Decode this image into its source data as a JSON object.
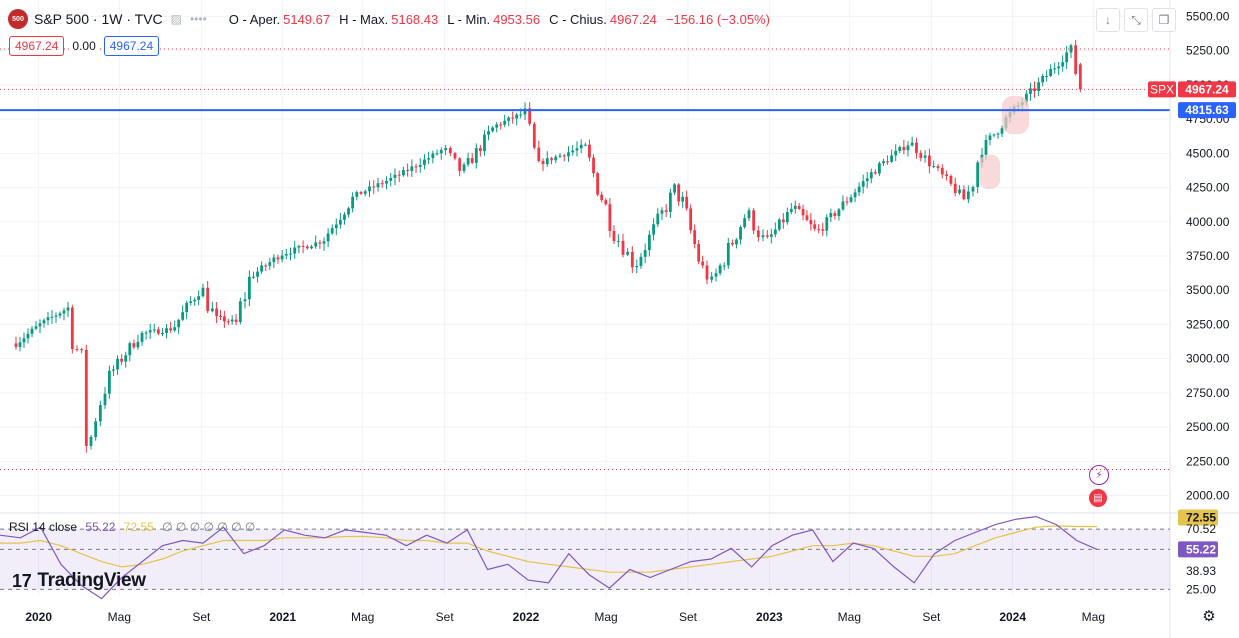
{
  "header": {
    "logo": "500",
    "title": "S&P 500 · 1W · TVC",
    "ohlc": [
      {
        "k": "O - Aper.",
        "v": "5149.67"
      },
      {
        "k": "H - Max.",
        "v": "5168.43"
      },
      {
        "k": "L - Min.",
        "v": "4953.56"
      },
      {
        "k": "C - Chius.",
        "v": "4967.24"
      },
      {
        "k": "",
        "v": "−156.16 (−3.05%)"
      }
    ]
  },
  "badges": {
    "left": "4967.24",
    "mid": "0.00",
    "right": "4967.24"
  },
  "toolbar_icons": [
    "arrow-down-icon",
    "collapse-icon",
    "restore-icon"
  ],
  "rsi_legend": {
    "title": "RSI 14 close",
    "value": "55.22",
    "ma": "72.55",
    "zeros": "∅ ∅ ∅ ∅ ∅ ∅ ∅"
  },
  "brand": {
    "mark": "17",
    "name": "TradingView"
  },
  "colors": {
    "up": "#089981",
    "down": "#f23645",
    "hline": "#2962ff",
    "rsi": "#7e57c2",
    "rsi_ma": "#e6c34c",
    "highlight": "#f7c9c9"
  },
  "chart_data": [
    {
      "type": "candlestick",
      "title": "S&P 500 · 1W · TVC",
      "x_labels": [
        "2020",
        "Mag",
        "Set",
        "2021",
        "Mag",
        "Set",
        "2022",
        "Mag",
        "Set",
        "2023",
        "Mag",
        "Set",
        "2024",
        "Mag"
      ],
      "y_ticks": [
        2000,
        2250,
        2500,
        2750,
        3000,
        3250,
        3500,
        3750,
        4000,
        4250,
        4500,
        4750,
        5000,
        5250,
        5500
      ],
      "y_tick_labels": [
        "2000.00",
        "2250.00",
        "2500.00",
        "2750.00",
        "3000.00",
        "3250.00",
        "3500.00",
        "3750.00",
        "4000.00",
        "4250.00",
        "4500.00",
        "4750.00",
        "5000.00",
        "5250.00",
        "5500.00"
      ],
      "ylim": [
        1880,
        5620
      ],
      "series_close": [
        {
          "x": "2019-11-25",
          "close": 3100
        },
        {
          "x": "2020-01-06",
          "close": 3260
        },
        {
          "x": "2020-02-17",
          "close": 3380
        },
        {
          "x": "2020-03-02",
          "close": 2960
        },
        {
          "x": "2020-03-09",
          "close": 2700
        },
        {
          "x": "2020-03-16",
          "close": 2300
        },
        {
          "x": "2020-03-23",
          "close": 2540
        },
        {
          "x": "2020-04-13",
          "close": 2860
        },
        {
          "x": "2020-06-01",
          "close": 3180
        },
        {
          "x": "2020-07-20",
          "close": 3220
        },
        {
          "x": "2020-08-31",
          "close": 3520
        },
        {
          "x": "2020-09-21",
          "close": 3300
        },
        {
          "x": "2020-10-26",
          "close": 3260
        },
        {
          "x": "2020-11-09",
          "close": 3580
        },
        {
          "x": "2020-12-28",
          "close": 3760
        },
        {
          "x": "2021-03-01",
          "close": 3860
        },
        {
          "x": "2021-04-19",
          "close": 4190
        },
        {
          "x": "2021-06-28",
          "close": 4350
        },
        {
          "x": "2021-08-30",
          "close": 4530
        },
        {
          "x": "2021-09-27",
          "close": 4360
        },
        {
          "x": "2021-11-15",
          "close": 4700
        },
        {
          "x": "2021-12-27",
          "close": 4790
        },
        {
          "x": "2022-01-17",
          "close": 4420
        },
        {
          "x": "2022-03-28",
          "close": 4550
        },
        {
          "x": "2022-05-16",
          "close": 3900
        },
        {
          "x": "2022-06-13",
          "close": 3680
        },
        {
          "x": "2022-08-15",
          "close": 4260
        },
        {
          "x": "2022-09-26",
          "close": 3590
        },
        {
          "x": "2022-10-10",
          "close": 3580
        },
        {
          "x": "2022-11-28",
          "close": 4070
        },
        {
          "x": "2022-12-26",
          "close": 3840
        },
        {
          "x": "2023-02-06",
          "close": 4110
        },
        {
          "x": "2023-03-13",
          "close": 3920
        },
        {
          "x": "2023-06-12",
          "close": 4400
        },
        {
          "x": "2023-07-31",
          "close": 4580
        },
        {
          "x": "2023-10-23",
          "close": 4150
        },
        {
          "x": "2023-11-13",
          "close": 4510
        },
        {
          "x": "2023-12-25",
          "close": 4770
        },
        {
          "x": "2024-02-12",
          "close": 5020
        },
        {
          "x": "2024-03-25",
          "close": 5250
        },
        {
          "x": "2024-04-15",
          "close": 4967.24
        }
      ],
      "price_labels": [
        {
          "name": "SPX",
          "value": "4967.24",
          "color": "#f23645"
        },
        {
          "name": "",
          "value": "4815.63",
          "color": "#2962ff"
        }
      ],
      "horizontal_line": 4815.63,
      "dotted_levels": [
        5262,
        4967.24,
        2190
      ]
    },
    {
      "type": "line",
      "title": "RSI 14 close",
      "y_ticks": [
        25.0,
        38.93,
        55.22,
        70.52,
        72.55
      ],
      "y_tick_labels": [
        "25.00",
        "38.93",
        "55.22",
        "70.52",
        "72.55"
      ],
      "ylim": [
        20,
        82
      ],
      "bands": [
        30,
        50,
        70
      ],
      "series": [
        {
          "name": "RSI",
          "values": [
            66,
            64,
            72,
            44,
            28,
            18,
            34,
            46,
            58,
            62,
            60,
            72,
            52,
            58,
            70,
            66,
            64,
            70,
            68,
            66,
            58,
            66,
            60,
            70,
            40,
            44,
            32,
            30,
            52,
            36,
            26,
            40,
            34,
            40,
            46,
            48,
            56,
            42,
            58,
            66,
            70,
            46,
            60,
            56,
            42,
            30,
            52,
            62,
            68,
            74,
            78,
            80,
            74,
            62,
            55.22
          ]
        },
        {
          "name": "MA",
          "values": [
            60,
            60,
            62,
            58,
            52,
            46,
            42,
            44,
            48,
            54,
            58,
            62,
            62,
            62,
            64,
            64,
            64,
            65,
            65,
            64,
            62,
            62,
            60,
            60,
            54,
            50,
            46,
            44,
            42,
            40,
            38,
            38,
            38,
            40,
            42,
            44,
            46,
            48,
            50,
            54,
            58,
            58,
            60,
            58,
            54,
            50,
            50,
            52,
            58,
            64,
            68,
            72,
            73,
            72.55,
            72.55
          ]
        }
      ]
    }
  ]
}
